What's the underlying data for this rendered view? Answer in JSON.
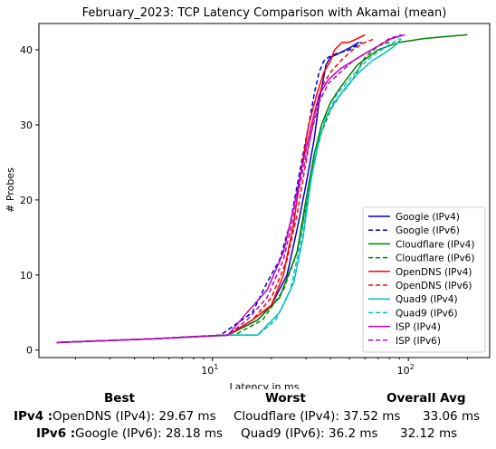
{
  "chart_data": {
    "type": "line",
    "title": "February_2023: TCP Latency Comparison with Akamai (mean)",
    "xlabel": "Latency in ms",
    "ylabel": "# Probes",
    "xscale": "log",
    "xlim": [
      1.3,
      260
    ],
    "ylim": [
      -1,
      43.5
    ],
    "xticks": [
      10,
      100
    ],
    "xtick_labels": [
      "10^1",
      "10^2"
    ],
    "yticks": [
      0,
      10,
      20,
      30,
      40
    ],
    "grid": false,
    "legend_position": "lower right",
    "series": [
      {
        "name": "Google (IPv4)",
        "color": "#0000cc",
        "dash": "solid",
        "x": [
          1.6,
          5,
          12,
          17,
          20,
          24,
          27,
          30,
          33,
          35,
          38,
          40,
          44,
          48,
          52,
          56
        ],
        "y": [
          1,
          1.5,
          2,
          4,
          6,
          10,
          16,
          22,
          28,
          33,
          38,
          39,
          39.5,
          40,
          40.5,
          41
        ]
      },
      {
        "name": "Google (IPv6)",
        "color": "#0000cc",
        "dash": "dashed",
        "x": [
          1.6,
          5,
          11,
          16,
          19,
          22,
          25,
          28,
          31,
          33,
          35,
          37,
          39,
          43,
          50,
          58
        ],
        "y": [
          1,
          1.5,
          2,
          5,
          9,
          12,
          17,
          24,
          30,
          34,
          37,
          38.5,
          39,
          39.5,
          40,
          41
        ]
      },
      {
        "name": "Cloudflare (IPv4)",
        "color": "#008000",
        "dash": "solid",
        "x": [
          1.6,
          5,
          12,
          17,
          22,
          27,
          30,
          33,
          36,
          40,
          45,
          55,
          70,
          90,
          120,
          160,
          200
        ],
        "y": [
          1,
          1.5,
          2,
          4,
          7,
          13,
          20,
          26,
          30,
          33,
          35,
          38,
          40,
          41,
          41.5,
          41.8,
          42
        ]
      },
      {
        "name": "Cloudflare (IPv6)",
        "color": "#008000",
        "dash": "dashed",
        "x": [
          1.6,
          5,
          13,
          18,
          23,
          27,
          30,
          33,
          36,
          40,
          45,
          52,
          60,
          70,
          80
        ],
        "y": [
          1,
          1.5,
          2,
          4,
          8,
          13,
          19,
          25,
          29,
          32,
          34,
          36,
          39,
          40.5,
          41
        ]
      },
      {
        "name": "OpenDNS (IPv4)",
        "color": "#ff0000",
        "dash": "solid",
        "x": [
          1.6,
          5,
          12,
          16,
          20,
          23,
          26,
          28,
          31,
          34,
          37,
          40,
          42,
          46,
          50,
          55,
          60
        ],
        "y": [
          1,
          1.5,
          2,
          4,
          6,
          10,
          17,
          23,
          30,
          34,
          37,
          38.5,
          40,
          41,
          41,
          41.5,
          42
        ]
      },
      {
        "name": "OpenDNS (IPv6)",
        "color": "#ff0000",
        "dash": "dashed",
        "x": [
          1.6,
          5,
          12,
          16,
          20,
          24,
          27,
          30,
          33,
          36,
          40,
          45,
          52,
          60,
          68
        ],
        "y": [
          1,
          1.5,
          2,
          4,
          7,
          12,
          18,
          25,
          31,
          35,
          37,
          38.5,
          40,
          41,
          41.5
        ]
      },
      {
        "name": "Quad9 (IPv4)",
        "color": "#00bfbf",
        "dash": "solid",
        "x": [
          1.6,
          5,
          12,
          17,
          22,
          26,
          29,
          32,
          35,
          38,
          42,
          48,
          56,
          65,
          75,
          85,
          92
        ],
        "y": [
          1,
          1.5,
          2,
          2,
          5,
          9,
          15,
          23,
          28,
          31,
          33,
          35,
          37,
          38.5,
          39.5,
          40.5,
          41.5
        ]
      },
      {
        "name": "Quad9 (IPv6)",
        "color": "#00bfbf",
        "dash": "dashed",
        "x": [
          1.6,
          5,
          12,
          17,
          21,
          25,
          28,
          31,
          34,
          38,
          43,
          50,
          58,
          68,
          78,
          90
        ],
        "y": [
          1,
          1.5,
          2,
          2,
          4,
          8,
          14,
          21,
          27,
          31,
          34,
          36,
          38,
          39.5,
          40.5,
          41.5
        ]
      },
      {
        "name": "ISP (IPv4)",
        "color": "#bf00bf",
        "dash": "solid",
        "x": [
          1.6,
          5,
          12,
          15,
          19,
          23,
          26,
          29,
          32,
          35,
          39,
          45,
          52,
          60,
          70,
          82,
          96
        ],
        "y": [
          1,
          1.5,
          2,
          5,
          8,
          13,
          19,
          25,
          30,
          34,
          36,
          37.5,
          38.5,
          39.5,
          40.5,
          41.5,
          42
        ]
      },
      {
        "name": "ISP (IPv6)",
        "color": "#bf00bf",
        "dash": "dashed",
        "x": [
          1.6,
          5,
          12,
          15,
          19,
          23,
          26,
          29,
          32,
          35,
          39,
          45,
          52,
          60,
          70,
          80,
          92
        ],
        "y": [
          1,
          1.5,
          2,
          4,
          7,
          12,
          18,
          24,
          29,
          33,
          35.5,
          37,
          38.5,
          39.5,
          40.5,
          41.5,
          42
        ]
      }
    ]
  },
  "summary": {
    "headers": {
      "best": "Best",
      "worst": "Worst",
      "avg": "Overall Avg"
    },
    "rows": [
      {
        "label": "IPv4 :",
        "best": "OpenDNS (IPv4): 29.67 ms",
        "worst": "Cloudflare (IPv4): 37.52 ms",
        "avg": "33.06 ms"
      },
      {
        "label": "IPv6 :",
        "best": "Google (IPv6): 28.18 ms",
        "worst": "Quad9 (IPv6): 36.2 ms",
        "avg": "32.12 ms"
      }
    ]
  }
}
